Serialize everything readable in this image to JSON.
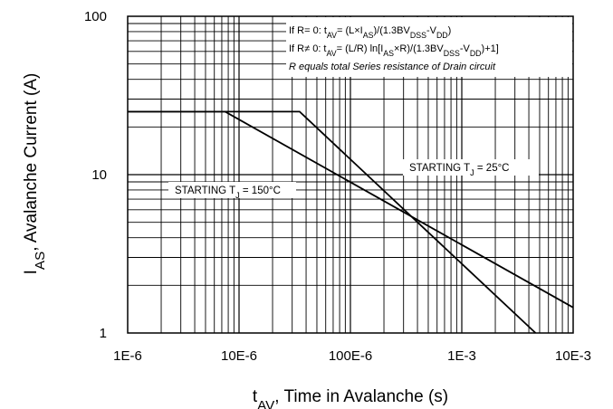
{
  "chart_data": {
    "type": "line",
    "x_scale": "log",
    "y_scale": "log",
    "xlim": [
      1e-06,
      0.01
    ],
    "ylim": [
      1,
      100
    ],
    "grid": true,
    "x_ticks": [
      {
        "value": 1e-06,
        "label": "1E-6"
      },
      {
        "value": 1e-05,
        "label": "10E-6"
      },
      {
        "value": 0.0001,
        "label": "100E-6"
      },
      {
        "value": 0.001,
        "label": "1E-3"
      },
      {
        "value": 0.01,
        "label": "10E-3"
      }
    ],
    "y_ticks": [
      {
        "value": 1,
        "label": "1"
      },
      {
        "value": 10,
        "label": "10"
      },
      {
        "value": 100,
        "label": "100"
      }
    ],
    "xlabel": {
      "main": "t",
      "sub": "AV",
      "rest": ", Time in Avalanche (s)"
    },
    "ylabel": {
      "main": "I",
      "sub": "AS",
      "rest": ", Avalanche Current (A)"
    },
    "series": [
      {
        "label_parts": [
          [
            "STARTING T",
            ""
          ],
          [
            "J",
            "sub"
          ],
          [
            " = 150°C",
            ""
          ]
        ],
        "x": [
          1e-06,
          3.5e-05,
          0.0046
        ],
        "y": [
          25,
          25,
          1
        ]
      },
      {
        "label_parts": [
          [
            "STARTING T",
            ""
          ],
          [
            "J",
            "sub"
          ],
          [
            " = 25°C",
            ""
          ]
        ],
        "x": [
          1e-06,
          7.5e-06,
          0.01
        ],
        "y": [
          25,
          25,
          1.45
        ]
      }
    ],
    "annotations": [
      [
        [
          "If R= 0: t",
          ""
        ],
        [
          "AV",
          "sub"
        ],
        [
          "= (L×I",
          ""
        ],
        [
          "AS",
          "sub"
        ],
        [
          ")/(1.3BV",
          ""
        ],
        [
          "DSS",
          "sub"
        ],
        [
          "-V",
          ""
        ],
        [
          "DD",
          "sub"
        ],
        [
          ")",
          ""
        ]
      ],
      [
        [
          "If R≠ 0: t",
          ""
        ],
        [
          "AV",
          "sub"
        ],
        [
          "= (L/R) ln[I",
          ""
        ],
        [
          "AS",
          "sub"
        ],
        [
          "×R)/(1.3BV",
          ""
        ],
        [
          "DSS",
          "sub"
        ],
        [
          "-V",
          ""
        ],
        [
          "DD",
          "sub"
        ],
        [
          ")+1]",
          ""
        ]
      ],
      [
        [
          "R equals total Series resistance of Drain circuit",
          "italic"
        ]
      ]
    ]
  }
}
